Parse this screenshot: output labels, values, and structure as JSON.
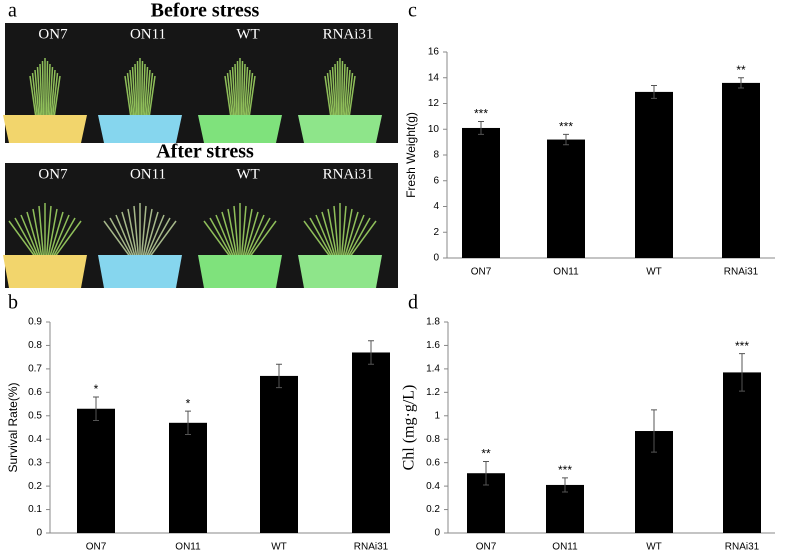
{
  "panel_a": {
    "label": "a",
    "before_title": "Before stress",
    "after_title": "After stress",
    "before_labels": [
      "ON7",
      "ON11",
      "WT",
      "RNAi31"
    ],
    "after_labels": [
      "ON7",
      "ON11",
      "WT",
      "RNAi31"
    ]
  },
  "chart_data": [
    {
      "type": "bar",
      "label": "c",
      "ylabel": "Fresh Weight(g)",
      "categories": [
        "ON7",
        "ON11",
        "WT",
        "RNAi31"
      ],
      "values": [
        10.1,
        9.2,
        12.9,
        13.6
      ],
      "errors": [
        0.5,
        0.4,
        0.5,
        0.4
      ],
      "annotations": [
        "***",
        "***",
        null,
        "**"
      ],
      "color": "#000000",
      "ylim": [
        0,
        16
      ],
      "yticks": [
        0,
        2,
        4,
        6,
        8,
        10,
        12,
        14,
        16
      ]
    },
    {
      "type": "bar",
      "label": "b",
      "ylabel": "Survival Rate(%)",
      "categories": [
        "ON7",
        "ON11",
        "WT",
        "RNAi31"
      ],
      "values": [
        0.53,
        0.47,
        0.67,
        0.77
      ],
      "errors": [
        0.05,
        0.05,
        0.05,
        0.05
      ],
      "annotations": [
        "*",
        "*",
        null,
        null
      ],
      "color": "#000000",
      "ylim": [
        0,
        0.9
      ],
      "yticks": [
        0,
        0.1,
        0.2,
        0.3,
        0.4,
        0.5,
        0.6,
        0.7,
        0.8,
        0.9
      ]
    },
    {
      "type": "bar",
      "label": "d",
      "ylabel": "Chl (mg·g/L)",
      "categories": [
        "ON7",
        "ON11",
        "WT",
        "RNAi31"
      ],
      "values": [
        0.51,
        0.41,
        0.87,
        1.37
      ],
      "errors": [
        0.1,
        0.06,
        0.18,
        0.16
      ],
      "annotations": [
        "**",
        "***",
        null,
        "***"
      ],
      "color": "#000000",
      "ylim": [
        0,
        1.8
      ],
      "yticks": [
        0,
        0.2,
        0.4,
        0.6,
        0.8,
        1,
        1.2,
        1.4,
        1.6,
        1.8
      ]
    }
  ]
}
